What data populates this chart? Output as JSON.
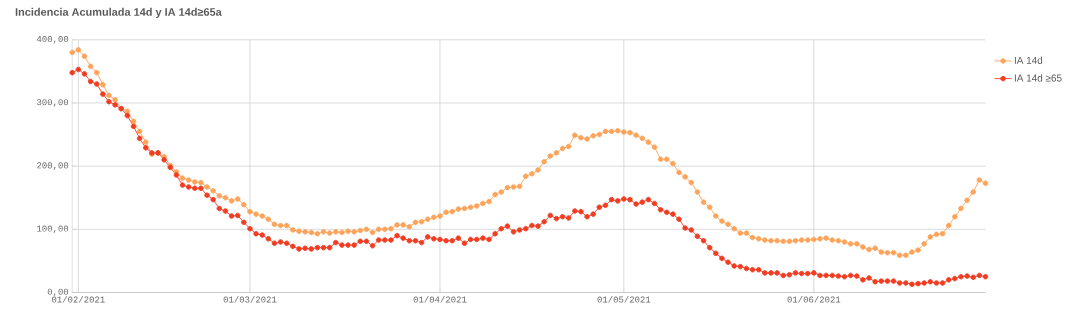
{
  "chart_data": {
    "type": "line",
    "title": "Incidencia Acumulada 14d y IA 14d≥65a",
    "x": [
      "2021-01-31",
      "2021-02-01",
      "2021-02-02",
      "2021-02-03",
      "2021-02-04",
      "2021-02-05",
      "2021-02-06",
      "2021-02-07",
      "2021-02-08",
      "2021-02-09",
      "2021-02-10",
      "2021-02-11",
      "2021-02-12",
      "2021-02-13",
      "2021-02-14",
      "2021-02-15",
      "2021-02-16",
      "2021-02-17",
      "2021-02-18",
      "2021-02-19",
      "2021-02-20",
      "2021-02-21",
      "2021-02-22",
      "2021-02-23",
      "2021-02-24",
      "2021-02-25",
      "2021-02-26",
      "2021-02-27",
      "2021-02-28",
      "2021-03-01",
      "2021-03-02",
      "2021-03-03",
      "2021-03-04",
      "2021-03-05",
      "2021-03-06",
      "2021-03-07",
      "2021-03-08",
      "2021-03-09",
      "2021-03-10",
      "2021-03-11",
      "2021-03-12",
      "2021-03-13",
      "2021-03-14",
      "2021-03-15",
      "2021-03-16",
      "2021-03-17",
      "2021-03-18",
      "2021-03-19",
      "2021-03-20",
      "2021-03-21",
      "2021-03-22",
      "2021-03-23",
      "2021-03-24",
      "2021-03-25",
      "2021-03-26",
      "2021-03-27",
      "2021-03-28",
      "2021-03-29",
      "2021-03-30",
      "2021-03-31",
      "2021-04-01",
      "2021-04-02",
      "2021-04-03",
      "2021-04-04",
      "2021-04-05",
      "2021-04-06",
      "2021-04-07",
      "2021-04-08",
      "2021-04-09",
      "2021-04-10",
      "2021-04-11",
      "2021-04-12",
      "2021-04-13",
      "2021-04-14",
      "2021-04-15",
      "2021-04-16",
      "2021-04-17",
      "2021-04-18",
      "2021-04-19",
      "2021-04-20",
      "2021-04-21",
      "2021-04-22",
      "2021-04-23",
      "2021-04-24",
      "2021-04-25",
      "2021-04-26",
      "2021-04-27",
      "2021-04-28",
      "2021-04-29",
      "2021-04-30",
      "2021-05-01",
      "2021-05-02",
      "2021-05-03",
      "2021-05-04",
      "2021-05-05",
      "2021-05-06",
      "2021-05-07",
      "2021-05-08",
      "2021-05-09",
      "2021-05-10",
      "2021-05-11",
      "2021-05-12",
      "2021-05-13",
      "2021-05-14",
      "2021-05-15",
      "2021-05-16",
      "2021-05-17",
      "2021-05-18",
      "2021-05-19",
      "2021-05-20",
      "2021-05-21",
      "2021-05-22",
      "2021-05-23",
      "2021-05-24",
      "2021-05-25",
      "2021-05-26",
      "2021-05-27",
      "2021-05-28",
      "2021-05-29",
      "2021-05-30",
      "2021-05-31",
      "2021-06-01",
      "2021-06-02",
      "2021-06-03",
      "2021-06-04",
      "2021-06-05",
      "2021-06-06",
      "2021-06-07",
      "2021-06-08",
      "2021-06-09",
      "2021-06-10",
      "2021-06-11",
      "2021-06-12",
      "2021-06-13",
      "2021-06-14",
      "2021-06-15",
      "2021-06-16",
      "2021-06-17",
      "2021-06-18",
      "2021-06-19",
      "2021-06-20",
      "2021-06-21",
      "2021-06-22",
      "2021-06-23",
      "2021-06-24",
      "2021-06-25",
      "2021-06-26",
      "2021-06-27",
      "2021-06-28",
      "2021-06-29"
    ],
    "series": [
      {
        "name": "IA 14d",
        "color": "#fda35a",
        "values": [
          380,
          384,
          374,
          358,
          348,
          329,
          312,
          305,
          291,
          287,
          271,
          255,
          238,
          219,
          221,
          215,
          201,
          191,
          181,
          178,
          175,
          174,
          167,
          161,
          153,
          150,
          145,
          148,
          139,
          128,
          124,
          121,
          116,
          108,
          106,
          106,
          99,
          97,
          96,
          95,
          93,
          96,
          94,
          96,
          95,
          97,
          96,
          98,
          100,
          95,
          100,
          100,
          101,
          107,
          107,
          104,
          111,
          112,
          116,
          119,
          121,
          127,
          128,
          132,
          133,
          135,
          137,
          141,
          144,
          155,
          159,
          166,
          167,
          168,
          184,
          188,
          194,
          207,
          216,
          221,
          228,
          231,
          249,
          245,
          243,
          248,
          250,
          255,
          255,
          256,
          254,
          253,
          249,
          244,
          238,
          230,
          211,
          211,
          204,
          190,
          183,
          174,
          159,
          143,
          135,
          121,
          113,
          108,
          101,
          94,
          94,
          87,
          85,
          83,
          82,
          82,
          81,
          81,
          82,
          83,
          83,
          84,
          85,
          86,
          83,
          82,
          80,
          77,
          77,
          72,
          68,
          70,
          64,
          63,
          63,
          59,
          59,
          64,
          67,
          77,
          88,
          92,
          93,
          106,
          120,
          133,
          146,
          159,
          178,
          173
        ]
      },
      {
        "name": "IA 14d ≥65",
        "color": "#f23c21",
        "values": [
          348,
          353,
          346,
          334,
          330,
          314,
          302,
          297,
          291,
          280,
          263,
          244,
          229,
          221,
          221,
          210,
          198,
          186,
          170,
          167,
          165,
          165,
          154,
          147,
          133,
          129,
          121,
          122,
          111,
          101,
          93,
          91,
          85,
          78,
          80,
          78,
          73,
          69,
          70,
          69,
          71,
          71,
          71,
          79,
          75,
          75,
          75,
          81,
          81,
          74,
          83,
          83,
          83,
          90,
          86,
          82,
          82,
          79,
          88,
          85,
          84,
          82,
          82,
          86,
          78,
          84,
          84,
          86,
          84,
          93,
          101,
          105,
          96,
          99,
          101,
          106,
          105,
          112,
          122,
          117,
          120,
          118,
          129,
          128,
          120,
          124,
          135,
          138,
          147,
          145,
          148,
          147,
          140,
          143,
          147,
          141,
          131,
          127,
          124,
          116,
          102,
          99,
          89,
          82,
          71,
          62,
          54,
          48,
          42,
          41,
          38,
          36,
          36,
          31,
          31,
          31,
          27,
          28,
          31,
          30,
          30,
          31,
          27,
          27,
          27,
          26,
          25,
          27,
          26,
          20,
          23,
          17,
          18,
          18,
          18,
          15,
          15,
          13,
          14,
          15,
          17,
          15,
          15,
          20,
          22,
          25,
          26,
          24,
          27,
          25
        ]
      }
    ],
    "xlim": [
      "2021-01-31",
      "2021-06-29"
    ],
    "xticks": [
      {
        "value": "2021-02-01",
        "label": "01/02/2021"
      },
      {
        "value": "2021-03-01",
        "label": "01/03/2021"
      },
      {
        "value": "2021-04-01",
        "label": "01/04/2021"
      },
      {
        "value": "2021-05-01",
        "label": "01/05/2021"
      },
      {
        "value": "2021-06-01",
        "label": "01/06/2021"
      }
    ],
    "ylim": [
      0,
      400
    ],
    "yticks": [
      {
        "value": 0,
        "label": "0,00"
      },
      {
        "value": 100,
        "label": "100,00"
      },
      {
        "value": 200,
        "label": "200,00"
      },
      {
        "value": 300,
        "label": "300,00"
      },
      {
        "value": 400,
        "label": "400,00"
      }
    ],
    "grid": true,
    "legend": "top right",
    "marker": "circle",
    "line_style": "solid"
  }
}
